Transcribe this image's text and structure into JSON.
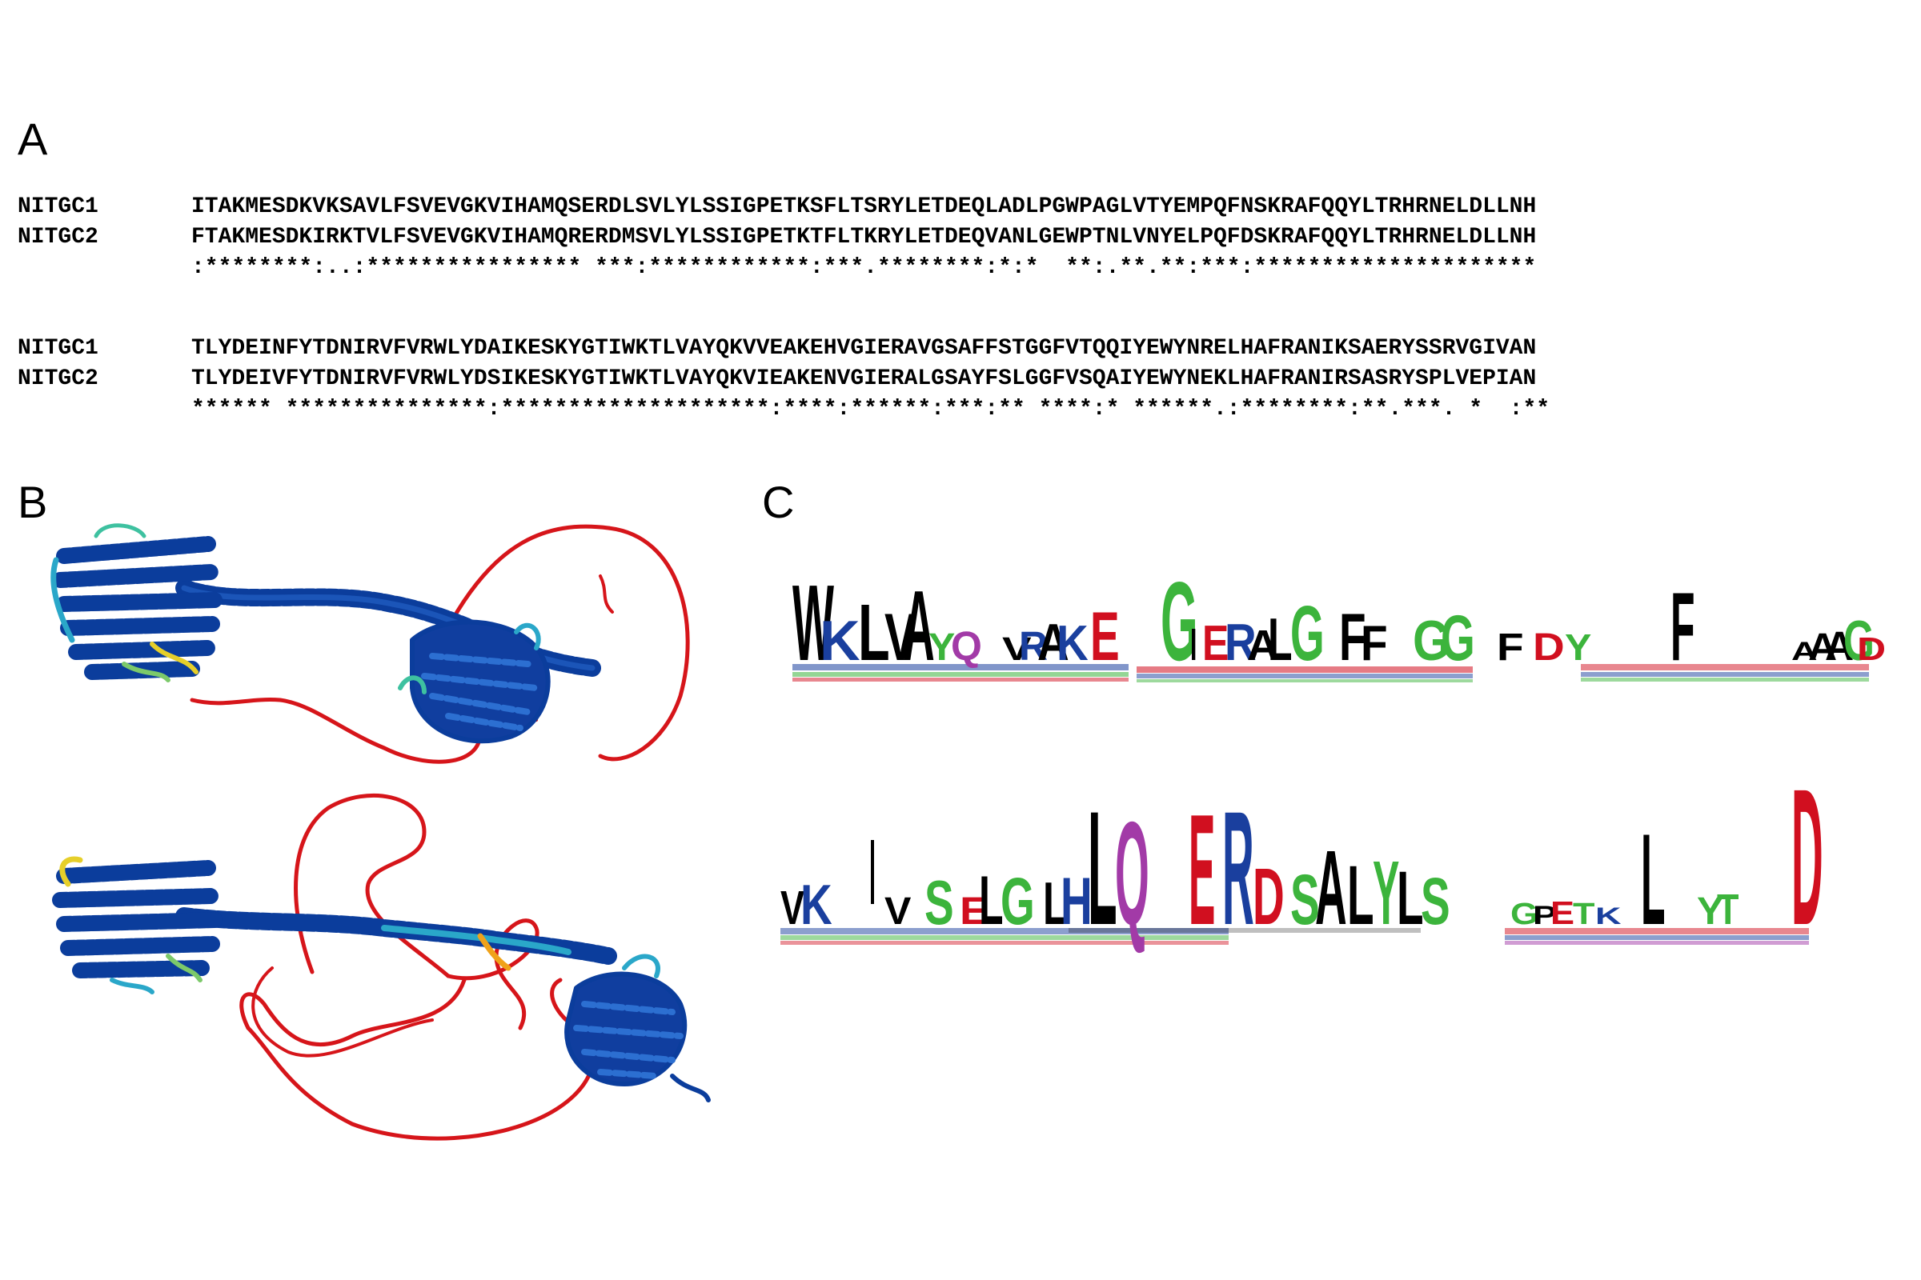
{
  "panels": {
    "a": "A",
    "b": "B",
    "c": "C"
  },
  "alignment": {
    "blocks": [
      {
        "rows": [
          {
            "name": "NITGC1",
            "seq": "ITAKMESDKVKSAVLFSVEVGKVIHAMQSERDLSVLYLSSIGPETKSFLTSRYLETDEQLADLPGWPAGLVTYEMPQFNSKRAFQQYLTRHRNELDLLNH"
          },
          {
            "name": "NITGC2",
            "seq": "FTAKMESDKIRKTVLFSVEVGKVIHAMQRERDMSVLYLSSIGPETKTFLTKRYLETDEQVANLGEWPTNLVNYELPQFDSKRAFQQYLTRHRNELDLLNH"
          }
        ],
        "consensus": ":********:..:**************** ***:************:***.********:*:*  **:.**.**:***:*********************"
      },
      {
        "rows": [
          {
            "name": "NITGC1",
            "seq": "TLYDEINFYTDNIRVFVRWLYDAIKESKYGTIWKTLVAYQKVVEAKEHVGIERAVGSAFFSTGGFVTQQIYEWYNRELHAFRANIKSAERYSSRVGIVAN"
          },
          {
            "name": "NITGC2",
            "seq": "TLYDEIVFYTDNIRVFVRWLYDSIKESKYGTIWKTLVAYQKVIEAKENVGIERALGSAYFSLGGFVSQAIYEWYNEKLHAFRANIRSASRYSPLVEPIAN"
          }
        ],
        "consensus": "****** ***************:********************:****:******:***:** ****:* ******.:********:**.***. *  :**"
      }
    ]
  },
  "logo": {
    "row1": [
      "W",
      "K",
      "L",
      "V",
      "A",
      "Y",
      "Q",
      "V",
      "R",
      "A",
      "K",
      "E",
      "G",
      "I",
      "E",
      "R",
      "A",
      "L",
      "G",
      "F",
      "F",
      "G",
      "G",
      "F",
      "D",
      "Y",
      "F",
      "A",
      "A",
      "A",
      "G",
      "D"
    ],
    "row2": [
      "V",
      "K",
      "V",
      "S",
      "E",
      "L",
      "G",
      "L",
      "H",
      "L",
      "Q",
      "E",
      "R",
      "D",
      "S",
      "A",
      "L",
      "Y",
      "L",
      "S",
      "G",
      "P",
      "E",
      "T",
      "K",
      "L",
      "Y",
      "T",
      "D"
    ]
  },
  "colors": {
    "hydrophobic": "#000000",
    "basic": "#1a3f9e",
    "acidic": "#d10f1f",
    "polar": "#3cb43c",
    "amide": "#a23aa7",
    "confidence_high": "#0b3d9c",
    "confidence_mid": "#2aa7c9",
    "confidence_low": "#e6cf2a",
    "confidence_very_low": "#d6151a"
  }
}
